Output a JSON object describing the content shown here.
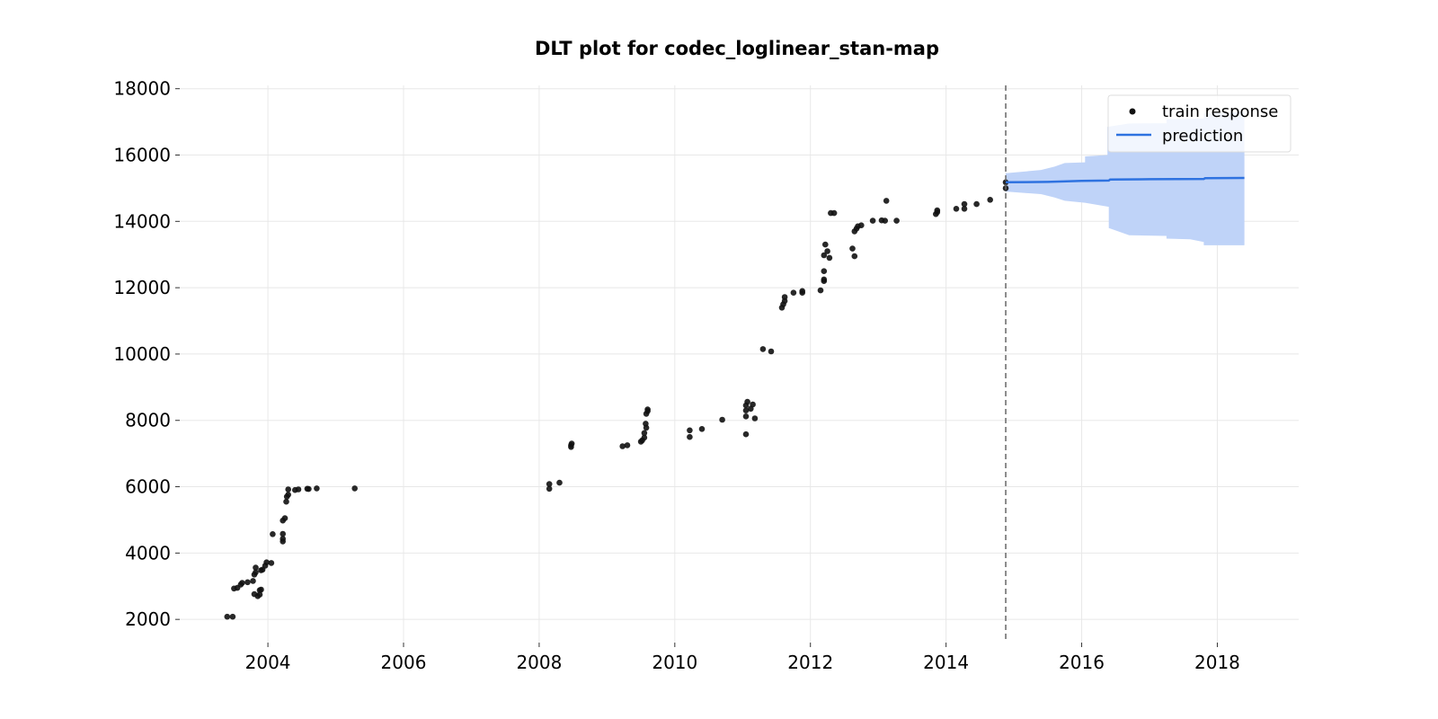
{
  "chart_data": {
    "type": "scatter",
    "title": "DLT plot for codec_loglinear_stan-map",
    "xlabel": "",
    "ylabel": "",
    "xlim": [
      2002.7,
      2019.2
    ],
    "ylim": [
      1300,
      18100
    ],
    "x_ticks": [
      2004,
      2006,
      2008,
      2010,
      2012,
      2014,
      2016,
      2018
    ],
    "y_ticks": [
      2000,
      4000,
      6000,
      8000,
      10000,
      12000,
      14000,
      16000,
      18000
    ],
    "grid": true,
    "legend_position": "top-right",
    "forecast_start": 2014.88,
    "colors": {
      "train": "#111111",
      "prediction": "#2e72e0",
      "interval": "#bfd3f8",
      "divider": "#666666"
    },
    "series": [
      {
        "name": "train response",
        "kind": "scatter",
        "points": [
          [
            2003.4,
            2080
          ],
          [
            2003.48,
            2080
          ],
          [
            2003.5,
            2930
          ],
          [
            2003.55,
            2950
          ],
          [
            2003.6,
            3050
          ],
          [
            2003.62,
            3100
          ],
          [
            2003.7,
            3120
          ],
          [
            2003.78,
            3160
          ],
          [
            2003.8,
            3350
          ],
          [
            2003.82,
            3420
          ],
          [
            2003.82,
            3560
          ],
          [
            2003.8,
            2760
          ],
          [
            2003.85,
            2700
          ],
          [
            2003.88,
            2750
          ],
          [
            2003.88,
            2880
          ],
          [
            2003.9,
            2900
          ],
          [
            2003.9,
            3480
          ],
          [
            2003.92,
            3500
          ],
          [
            2003.96,
            3620
          ],
          [
            2003.98,
            3720
          ],
          [
            2004.05,
            3700
          ],
          [
            2004.07,
            4570
          ],
          [
            2004.22,
            4350
          ],
          [
            2004.22,
            4430
          ],
          [
            2004.22,
            4580
          ],
          [
            2004.22,
            4980
          ],
          [
            2004.25,
            5050
          ],
          [
            2004.27,
            5550
          ],
          [
            2004.28,
            5700
          ],
          [
            2004.3,
            5760
          ],
          [
            2004.3,
            5920
          ],
          [
            2004.4,
            5900
          ],
          [
            2004.45,
            5920
          ],
          [
            2004.58,
            5940
          ],
          [
            2004.6,
            5930
          ],
          [
            2004.72,
            5950
          ],
          [
            2005.28,
            5950
          ],
          [
            2008.15,
            5940
          ],
          [
            2008.15,
            6080
          ],
          [
            2008.3,
            6120
          ],
          [
            2008.47,
            7200
          ],
          [
            2008.47,
            7250
          ],
          [
            2008.48,
            7300
          ],
          [
            2009.23,
            7220
          ],
          [
            2009.3,
            7250
          ],
          [
            2009.5,
            7360
          ],
          [
            2009.52,
            7400
          ],
          [
            2009.55,
            7480
          ],
          [
            2009.55,
            7620
          ],
          [
            2009.58,
            7780
          ],
          [
            2009.57,
            7900
          ],
          [
            2009.58,
            8200
          ],
          [
            2009.6,
            8280
          ],
          [
            2009.6,
            8330
          ],
          [
            2010.22,
            7500
          ],
          [
            2010.22,
            7700
          ],
          [
            2010.4,
            7740
          ],
          [
            2010.7,
            8020
          ],
          [
            2011.05,
            7580
          ],
          [
            2011.05,
            8120
          ],
          [
            2011.05,
            8300
          ],
          [
            2011.05,
            8450
          ],
          [
            2011.07,
            8560
          ],
          [
            2011.12,
            8350
          ],
          [
            2011.15,
            8480
          ],
          [
            2011.18,
            8060
          ],
          [
            2011.3,
            10150
          ],
          [
            2011.42,
            10080
          ],
          [
            2011.58,
            11400
          ],
          [
            2011.6,
            11500
          ],
          [
            2011.62,
            11600
          ],
          [
            2011.62,
            11720
          ],
          [
            2011.75,
            11850
          ],
          [
            2011.88,
            11850
          ],
          [
            2011.88,
            11900
          ],
          [
            2012.15,
            11920
          ],
          [
            2012.2,
            12200
          ],
          [
            2012.2,
            12250
          ],
          [
            2012.2,
            12500
          ],
          [
            2012.2,
            12980
          ],
          [
            2012.22,
            13300
          ],
          [
            2012.25,
            13100
          ],
          [
            2012.28,
            12900
          ],
          [
            2012.3,
            14250
          ],
          [
            2012.35,
            14250
          ],
          [
            2012.62,
            13180
          ],
          [
            2012.65,
            12950
          ],
          [
            2012.65,
            13700
          ],
          [
            2012.68,
            13780
          ],
          [
            2012.7,
            13850
          ],
          [
            2012.75,
            13880
          ],
          [
            2012.92,
            14020
          ],
          [
            2013.05,
            14030
          ],
          [
            2013.1,
            14020
          ],
          [
            2013.12,
            14620
          ],
          [
            2013.27,
            14020
          ],
          [
            2013.85,
            14220
          ],
          [
            2013.87,
            14280
          ],
          [
            2013.87,
            14330
          ],
          [
            2014.15,
            14380
          ],
          [
            2014.27,
            14380
          ],
          [
            2014.27,
            14520
          ],
          [
            2014.45,
            14520
          ],
          [
            2014.65,
            14650
          ],
          [
            2014.88,
            15000
          ],
          [
            2014.88,
            15180
          ]
        ]
      },
      {
        "name": "prediction",
        "kind": "line",
        "points": [
          [
            2014.88,
            15180
          ],
          [
            2015.5,
            15190
          ],
          [
            2016.0,
            15220
          ],
          [
            2016.4,
            15230
          ],
          [
            2016.42,
            15260
          ],
          [
            2017.0,
            15270
          ],
          [
            2017.8,
            15280
          ],
          [
            2017.82,
            15300
          ],
          [
            2018.4,
            15310
          ]
        ],
        "interval_upper": [
          [
            2014.88,
            15450
          ],
          [
            2015.4,
            15550
          ],
          [
            2015.6,
            15650
          ],
          [
            2015.75,
            15760
          ],
          [
            2016.05,
            15780
          ],
          [
            2016.05,
            15960
          ],
          [
            2016.38,
            16000
          ],
          [
            2016.38,
            16850
          ],
          [
            2016.7,
            16950
          ],
          [
            2017.25,
            16960
          ],
          [
            2017.25,
            17080
          ],
          [
            2017.8,
            17100
          ],
          [
            2017.8,
            17250
          ],
          [
            2018.4,
            17300
          ]
        ],
        "interval_lower": [
          [
            2014.88,
            14900
          ],
          [
            2015.4,
            14820
          ],
          [
            2015.6,
            14720
          ],
          [
            2015.75,
            14620
          ],
          [
            2016.05,
            14560
          ],
          [
            2016.4,
            14440
          ],
          [
            2016.4,
            13800
          ],
          [
            2016.7,
            13580
          ],
          [
            2017.25,
            13560
          ],
          [
            2017.25,
            13480
          ],
          [
            2017.6,
            13460
          ],
          [
            2017.8,
            13380
          ],
          [
            2017.8,
            13280
          ],
          [
            2018.4,
            13280
          ]
        ]
      }
    ]
  }
}
